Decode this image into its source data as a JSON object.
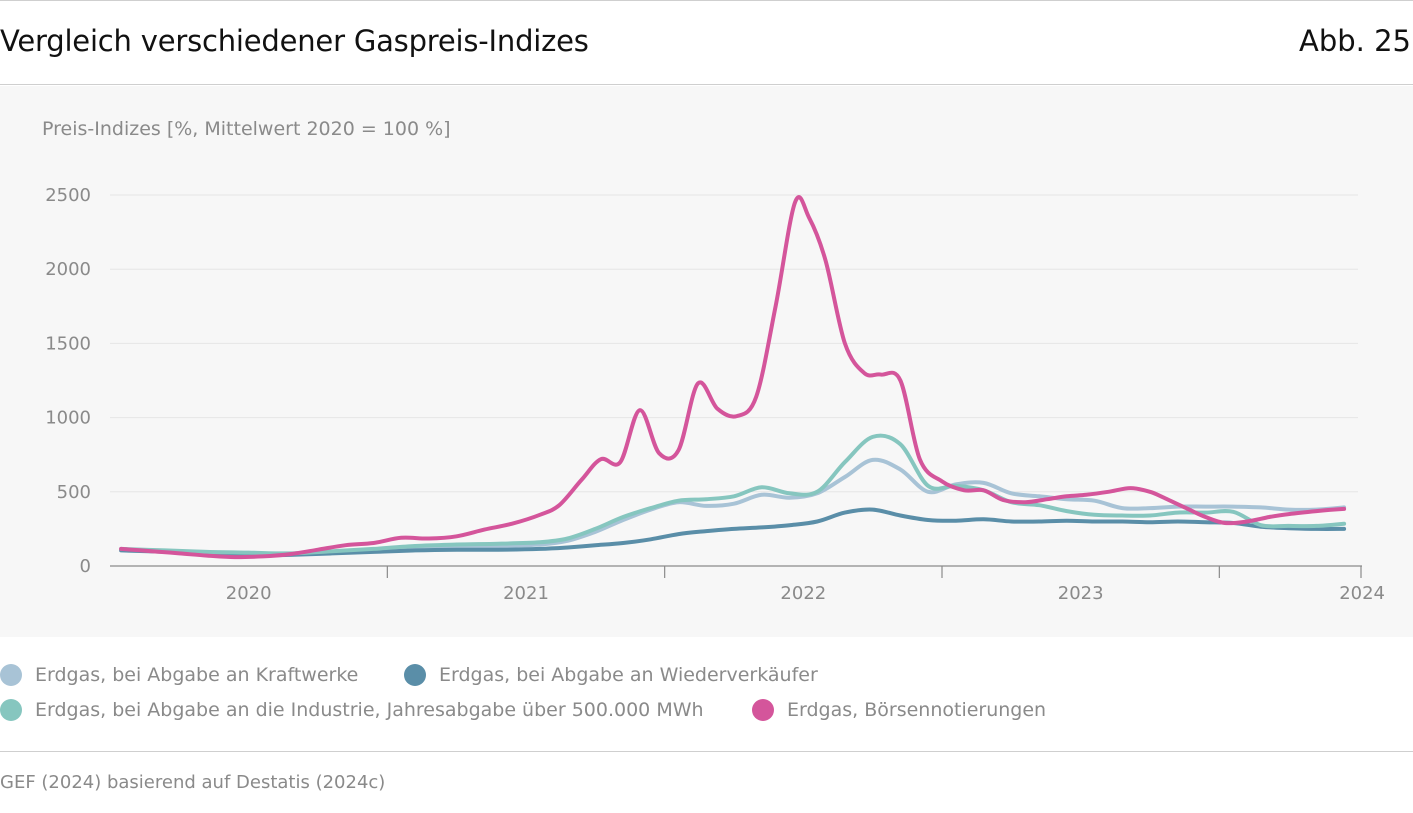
{
  "header": {
    "title": "Vergleich verschiedener Gaspreis-Indizes",
    "figure_label": "Abb. 25"
  },
  "source": "GEF (2024) basierend auf Destatis (2024c)",
  "colors": {
    "kraftwerke": "#a8c3d6",
    "wiederverkaeufer": "#5a8ea8",
    "industrie": "#86c6bf",
    "boerse": "#d4559b",
    "grid": "#e6e6e6",
    "axis": "#8a8a8a"
  },
  "chart_data": {
    "type": "line",
    "title": "Vergleich verschiedener Gaspreis-Indizes",
    "ylabel": "Preis-Indizes [%, Mittelwert 2020 = 100 %]",
    "xlabel": "",
    "ylim": [
      0,
      2500
    ],
    "xlim": [
      2019.5,
      2024.0
    ],
    "y_ticks": [
      0,
      500,
      1000,
      1500,
      2000,
      2500
    ],
    "x_labels": [
      {
        "label": "2020",
        "pos": 2020.0
      },
      {
        "label": "2021",
        "pos": 2021.0
      },
      {
        "label": "2022",
        "pos": 2022.0
      },
      {
        "label": "2023",
        "pos": 2023.0
      },
      {
        "label": "2024",
        "pos": 2024.0
      }
    ],
    "x_ticks": [
      2020.5,
      2021.5,
      2022.5,
      2023.5
    ],
    "grid": true,
    "legend_position": "bottom",
    "series": [
      {
        "key": "kraftwerke",
        "name": "Erdgas, bei Abgabe an Kraftwerke",
        "x": [
          2019.54,
          2019.7,
          2019.85,
          2020.0,
          2020.15,
          2020.3,
          2020.45,
          2020.6,
          2020.75,
          2020.9,
          2021.05,
          2021.15,
          2021.25,
          2021.35,
          2021.45,
          2021.55,
          2021.65,
          2021.75,
          2021.85,
          2021.95,
          2022.05,
          2022.15,
          2022.25,
          2022.35,
          2022.45,
          2022.55,
          2022.65,
          2022.75,
          2022.85,
          2022.95,
          2023.05,
          2023.15,
          2023.25,
          2023.35,
          2023.45,
          2023.55,
          2023.65,
          2023.75,
          2023.85,
          2023.95
        ],
        "values": [
          110,
          100,
          90,
          85,
          80,
          95,
          105,
          120,
          130,
          135,
          145,
          170,
          230,
          310,
          380,
          430,
          405,
          420,
          480,
          460,
          490,
          600,
          715,
          650,
          500,
          550,
          560,
          490,
          470,
          450,
          440,
          390,
          390,
          400,
          400,
          400,
          395,
          380,
          380,
          395
        ]
      },
      {
        "key": "wiederverkaeufer",
        "name": "Erdgas, bei Abgabe an Wiederverkäufer",
        "x": [
          2019.54,
          2019.7,
          2019.85,
          2020.0,
          2020.15,
          2020.3,
          2020.45,
          2020.6,
          2020.75,
          2020.9,
          2021.05,
          2021.15,
          2021.25,
          2021.35,
          2021.45,
          2021.55,
          2021.65,
          2021.75,
          2021.85,
          2021.95,
          2022.05,
          2022.15,
          2022.25,
          2022.35,
          2022.45,
          2022.55,
          2022.65,
          2022.75,
          2022.85,
          2022.95,
          2023.05,
          2023.15,
          2023.25,
          2023.35,
          2023.45,
          2023.55,
          2023.65,
          2023.75,
          2023.85,
          2023.95
        ],
        "values": [
          105,
          95,
          80,
          70,
          75,
          85,
          95,
          105,
          110,
          110,
          115,
          125,
          140,
          155,
          180,
          215,
          235,
          250,
          260,
          275,
          300,
          360,
          380,
          340,
          310,
          305,
          315,
          300,
          300,
          305,
          300,
          300,
          295,
          300,
          295,
          290,
          265,
          255,
          250,
          250
        ]
      },
      {
        "key": "industrie",
        "name": "Erdgas, bei Abgabe an die Industrie, Jahresabgabe über 500.000 MWh",
        "x": [
          2019.54,
          2019.7,
          2019.85,
          2020.0,
          2020.15,
          2020.3,
          2020.45,
          2020.6,
          2020.75,
          2020.9,
          2021.05,
          2021.15,
          2021.25,
          2021.35,
          2021.45,
          2021.55,
          2021.65,
          2021.75,
          2021.85,
          2021.95,
          2022.05,
          2022.15,
          2022.25,
          2022.35,
          2022.45,
          2022.55,
          2022.65,
          2022.75,
          2022.85,
          2022.95,
          2023.05,
          2023.15,
          2023.25,
          2023.35,
          2023.45,
          2023.55,
          2023.65,
          2023.75,
          2023.85,
          2023.95
        ],
        "values": [
          115,
          105,
          95,
          90,
          85,
          100,
          115,
          135,
          145,
          150,
          160,
          185,
          250,
          330,
          390,
          440,
          450,
          470,
          530,
          490,
          500,
          700,
          870,
          820,
          540,
          540,
          510,
          430,
          410,
          370,
          345,
          340,
          340,
          360,
          360,
          365,
          275,
          270,
          270,
          285
        ]
      },
      {
        "key": "boerse",
        "name": "Erdgas, Börsennotierungen",
        "x": [
          2019.54,
          2019.65,
          2019.75,
          2019.85,
          2019.95,
          2020.05,
          2020.15,
          2020.25,
          2020.35,
          2020.45,
          2020.55,
          2020.65,
          2020.75,
          2020.85,
          2020.95,
          2021.05,
          2021.12,
          2021.2,
          2021.27,
          2021.34,
          2021.41,
          2021.48,
          2021.55,
          2021.62,
          2021.69,
          2021.76,
          2021.83,
          2021.9,
          2021.97,
          2022.02,
          2022.08,
          2022.15,
          2022.22,
          2022.28,
          2022.35,
          2022.42,
          2022.5,
          2022.58,
          2022.65,
          2022.72,
          2022.8,
          2022.88,
          2022.95,
          2023.02,
          2023.1,
          2023.18,
          2023.25,
          2023.3,
          2023.38,
          2023.45,
          2023.52,
          2023.6,
          2023.68,
          2023.75,
          2023.85,
          2023.95
        ],
        "values": [
          115,
          100,
          85,
          70,
          60,
          65,
          80,
          110,
          140,
          155,
          190,
          185,
          200,
          245,
          285,
          345,
          410,
          580,
          720,
          700,
          1050,
          760,
          780,
          1230,
          1060,
          1010,
          1140,
          1750,
          2450,
          2350,
          2060,
          1500,
          1300,
          1290,
          1250,
          720,
          570,
          510,
          510,
          445,
          430,
          450,
          470,
          480,
          500,
          525,
          500,
          460,
          390,
          330,
          290,
          300,
          330,
          350,
          370,
          385
        ]
      }
    ]
  }
}
